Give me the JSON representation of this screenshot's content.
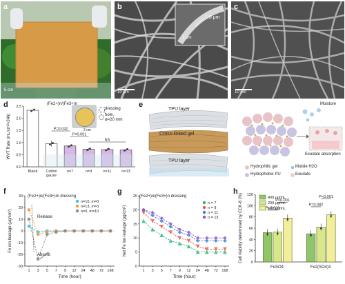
{
  "panels": {
    "a": {
      "label": "a",
      "scale": "5 cm",
      "colors": {
        "sky": "#dfe6ec",
        "foliage": "#2f6b2a",
        "sheet": "#d79a47",
        "glove": "#e9ecef"
      }
    },
    "b": {
      "label": "b",
      "inset_value": "1.6 μm",
      "inset_scale": "1 μm",
      "scale": "10 μm"
    },
    "c": {
      "label": "c",
      "scale": "10 μm"
    },
    "d": {
      "label": "d",
      "legend_title": "(Fe2+)n/(Fe3+)n",
      "legend_dressing": "dressing",
      "legend_hole_1": "hole,",
      "legend_hole_2": "ø=20 mm",
      "inset_scale": "2 cm"
    },
    "e": {
      "label": "e",
      "tpu_top": "TPU layer",
      "gel": "Cross-linked gel",
      "tpu_bottom": "TPU layer",
      "moisture": "Moisture",
      "exudate_absorption": "Exudate absorption",
      "legend": {
        "hydrophilic_gel": "Hydrophilic gel",
        "mobile_h2o": "Mobile H2O",
        "hydrophobic_pu": "Hydrophobic PU",
        "exudate": "Exudate"
      }
    },
    "f": {
      "label": "f",
      "title": "(Fe2+)n/(Fe3+)m dressing",
      "release": "Release",
      "absorb": "Absorb"
    },
    "g": {
      "label": "g",
      "title": "(Fe2+)n/(Fe3+)n dressing"
    },
    "h": {
      "label": "h"
    }
  },
  "chart_data": [
    {
      "id": "d",
      "type": "bar",
      "ylabel": "WVT Rate (mL/cm²×24h)",
      "ylim": [
        0,
        2.5
      ],
      "yticks": [
        "0.0",
        "0.5",
        "1.0",
        "1.5",
        "2.0",
        "2.5"
      ],
      "categories": [
        "Blank",
        "Cotton gauze",
        "n=7",
        "n=9",
        "n=11",
        "n=13"
      ],
      "values": [
        2.33,
        0.95,
        0.86,
        0.72,
        0.71,
        0.7
      ],
      "errors": [
        0.02,
        0.12,
        0.04,
        0.05,
        0.05,
        0.04
      ],
      "annotations": [
        "P=0.042",
        "P=0.001",
        "NS"
      ]
    },
    {
      "id": "f",
      "type": "line",
      "ylabel": "Fe ion leakage (μg/cm²)",
      "xlabel": "Time (hour)",
      "xticks": [
        "1",
        "3",
        "5",
        "7",
        "9",
        "12",
        "24",
        "48",
        "72",
        "168"
      ],
      "ylim": [
        -30,
        30
      ],
      "yticks": [
        "-30",
        "-20",
        "-10",
        "0",
        "10",
        "20",
        "30"
      ],
      "series": [
        {
          "name": "n=10, m=0",
          "color": "#34c3f0",
          "values": [
            4,
            -1,
            0,
            0,
            0,
            0,
            0,
            0,
            0,
            0
          ]
        },
        {
          "name": "n=13, m=3",
          "color": "#f59a3c",
          "values": [
            18,
            -3,
            -1,
            0,
            0,
            0,
            0,
            0,
            0,
            0
          ]
        },
        {
          "name": "n=0, m=10",
          "color": "#8a8a8a",
          "values": [
            10,
            -24,
            -3,
            -1,
            0,
            0,
            0,
            0,
            0,
            0
          ]
        }
      ]
    },
    {
      "id": "g",
      "type": "line",
      "ylabel": "Net Fe ion leakage (μg/cm²)",
      "xlabel": "Time (hour)",
      "xticks": [
        "1",
        "3",
        "5",
        "7",
        "9",
        "12",
        "24",
        "48",
        "72",
        "168"
      ],
      "ylim": [
        0,
        25
      ],
      "yticks": [
        "0",
        "5",
        "10",
        "15",
        "20",
        "25"
      ],
      "series": [
        {
          "name": "n = 7",
          "color": "#2bb673",
          "values": [
            16,
            13,
            11,
            9,
            8,
            7,
            5,
            5,
            5,
            5
          ]
        },
        {
          "name": "n = 9",
          "color": "#e4574d",
          "values": [
            19,
            16,
            14,
            12,
            10,
            9,
            7,
            6,
            6,
            6
          ]
        },
        {
          "name": "n = 11",
          "color": "#3b7fd6",
          "values": [
            20,
            18,
            16,
            14,
            12,
            11,
            9,
            9,
            9,
            9
          ]
        },
        {
          "name": "n = 13",
          "color": "#8e57c8",
          "values": [
            20,
            19,
            17,
            15,
            13,
            12,
            10,
            10,
            10,
            10
          ]
        }
      ]
    },
    {
      "id": "h",
      "type": "bar",
      "ylabel": "Cell viability determined by CCK-8 (%)",
      "ylim": [
        0,
        120
      ],
      "yticks": [
        "0",
        "20",
        "40",
        "60",
        "80",
        "100",
        "120"
      ],
      "categories": [
        "FeSO4",
        "Fe2(SO4)3"
      ],
      "series": [
        {
          "name": "400 μg/mL",
          "color": "#8fc66a",
          "values": [
            52,
            50
          ]
        },
        {
          "name": "200 μg/mL",
          "color": "#d9e68a",
          "values": [
            53,
            62
          ]
        },
        {
          "name": "100 μg/mL",
          "color": "#f2ee9a",
          "values": [
            78,
            84
          ]
        }
      ],
      "annotations": [
        "P=0.929",
        "P<0.001",
        "P=0.082",
        "P<0.001"
      ]
    }
  ]
}
